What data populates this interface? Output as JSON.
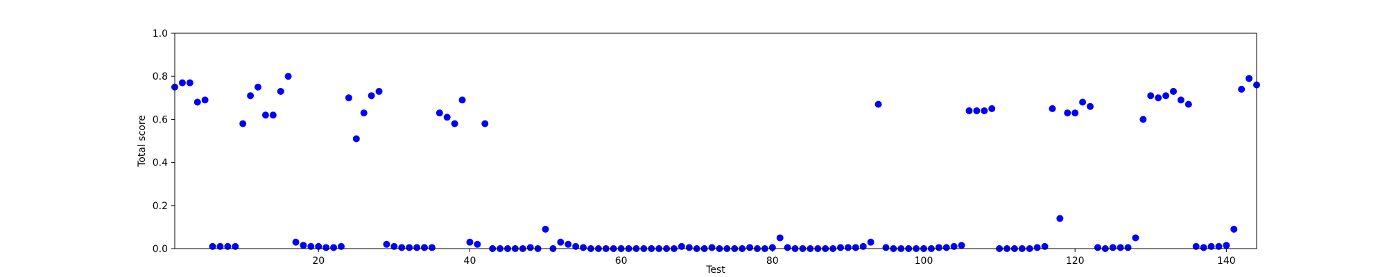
{
  "chart_data": {
    "type": "scatter",
    "title": "",
    "xlabel": "Test",
    "ylabel": "Total score",
    "xlim": [
      1,
      144
    ],
    "ylim": [
      0,
      1
    ],
    "x_ticks": [
      20,
      40,
      60,
      80,
      100,
      120,
      140
    ],
    "y_ticks": [
      0.0,
      0.2,
      0.4,
      0.6,
      0.8,
      1.0
    ],
    "x_tick_labels": [
      "20",
      "40",
      "60",
      "80",
      "100",
      "120",
      "140"
    ],
    "y_tick_labels": [
      "0.0",
      "0.2",
      "0.4",
      "0.6",
      "0.8",
      "1.0"
    ],
    "grid": false,
    "marker_color": "#0000ff",
    "series": [
      {
        "x": [
          1,
          2,
          3,
          4,
          5,
          6,
          7,
          8,
          9,
          10,
          11,
          12,
          13,
          14,
          15,
          16,
          17,
          18,
          19,
          20,
          21,
          22,
          23,
          24,
          25,
          26,
          27,
          28,
          29,
          30,
          31,
          32,
          33,
          34,
          35,
          36,
          37,
          38,
          39,
          40,
          41,
          42,
          43,
          44,
          45,
          46,
          47,
          48,
          49,
          50,
          51,
          52,
          53,
          54,
          55,
          56,
          57,
          58,
          59,
          60,
          61,
          62,
          63,
          64,
          65,
          66,
          67,
          68,
          69,
          70,
          71,
          72,
          73,
          74,
          75,
          76,
          77,
          78,
          79,
          80,
          81,
          82,
          83,
          84,
          85,
          86,
          87,
          88,
          89,
          90,
          91,
          92,
          93,
          94,
          95,
          96,
          97,
          98,
          99,
          100,
          101,
          102,
          103,
          104,
          105,
          106,
          107,
          108,
          109,
          110,
          111,
          112,
          113,
          114,
          115,
          116,
          117,
          118,
          119,
          120,
          121,
          122,
          123,
          124,
          125,
          126,
          127,
          128,
          129,
          130,
          131,
          132,
          133,
          134,
          135,
          136,
          137,
          138,
          139,
          140,
          141,
          142,
          143,
          144
        ],
        "y": [
          0.75,
          0.77,
          0.77,
          0.68,
          0.69,
          0.01,
          0.01,
          0.01,
          0.01,
          0.58,
          0.71,
          0.75,
          0.62,
          0.62,
          0.73,
          0.8,
          0.03,
          0.015,
          0.01,
          0.01,
          0.005,
          0.005,
          0.01,
          0.7,
          0.51,
          0.63,
          0.71,
          0.73,
          0.02,
          0.01,
          0.005,
          0.005,
          0.005,
          0.005,
          0.005,
          0.63,
          0.61,
          0.58,
          0.69,
          0.03,
          0.02,
          0.58,
          0.0,
          0.0,
          0.0,
          0.0,
          0.0,
          0.005,
          0.0,
          0.09,
          0.0,
          0.03,
          0.02,
          0.01,
          0.005,
          0.0,
          0.0,
          0.0,
          0.0,
          0.0,
          0.0,
          0.0,
          0.0,
          0.0,
          0.0,
          0.0,
          0.0,
          0.01,
          0.005,
          0.0,
          0.0,
          0.005,
          0.0,
          0.0,
          0.0,
          0.0,
          0.005,
          0.0,
          0.0,
          0.005,
          0.05,
          0.005,
          0.0,
          0.0,
          0.0,
          0.0,
          0.0,
          0.0,
          0.005,
          0.005,
          0.005,
          0.01,
          0.03,
          0.67,
          0.005,
          0.0,
          0.0,
          0.0,
          0.0,
          0.0,
          0.0,
          0.005,
          0.005,
          0.01,
          0.015,
          0.64,
          0.64,
          0.64,
          0.65,
          0.0,
          0.0,
          0.0,
          0.0,
          0.0,
          0.005,
          0.01,
          0.65,
          0.14,
          0.63,
          0.63,
          0.68,
          0.66,
          0.005,
          0.0,
          0.005,
          0.005,
          0.005,
          0.05,
          0.6,
          0.71,
          0.7,
          0.71,
          0.73,
          0.69,
          0.67,
          0.01,
          0.005,
          0.01,
          0.01,
          0.015,
          0.09,
          0.74,
          0.79,
          0.76
        ]
      }
    ]
  }
}
